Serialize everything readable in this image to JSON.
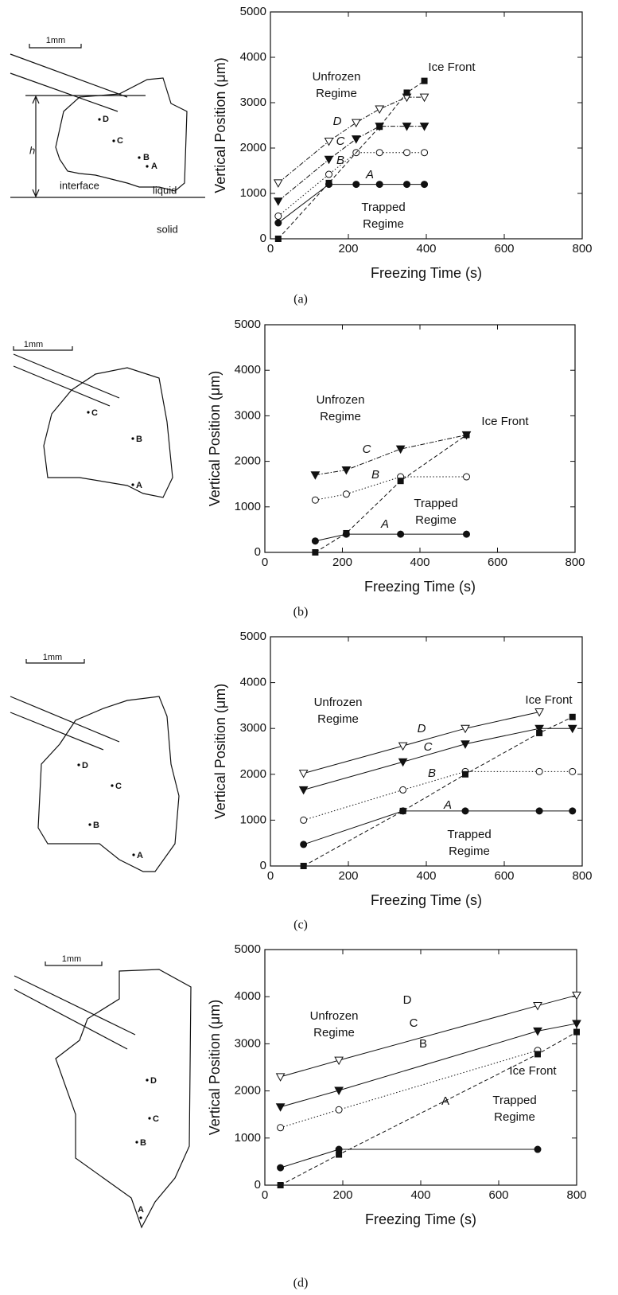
{
  "chart_data": [
    {
      "type": "line",
      "x_label": "Freezing Time (s)",
      "y_label": "Vertical Position (μm)",
      "xlim": [
        0,
        800
      ],
      "xticks": [
        0,
        200,
        400,
        600,
        800
      ],
      "ylim": [
        0,
        5000
      ],
      "yticks": [
        0,
        1000,
        2000,
        3000,
        4000,
        5000
      ],
      "series_label_italic": true,
      "annotations": [
        {
          "lines": [
            "Unfrozen",
            "Regime"
          ]
        },
        {
          "lines": [
            "Trapped",
            "Regime"
          ]
        }
      ],
      "series": [
        {
          "name": "A",
          "marker": "filled-circle",
          "dash": "solid",
          "x": [
            20,
            150,
            220,
            280,
            350,
            395
          ],
          "values": [
            350,
            1200,
            1200,
            1200,
            1200,
            1200
          ]
        },
        {
          "name": "B",
          "marker": "open-circle",
          "dash": "dotted",
          "x": [
            20,
            150,
            220,
            280,
            350,
            395
          ],
          "values": [
            500,
            1420,
            1900,
            1900,
            1900,
            1900
          ]
        },
        {
          "name": "C",
          "marker": "filled-triangle",
          "dash": "dashdot",
          "x": [
            20,
            150,
            220,
            280,
            350,
            395
          ],
          "values": [
            830,
            1750,
            2200,
            2480,
            2480,
            2480
          ]
        },
        {
          "name": "D",
          "marker": "open-triangle",
          "dash": "dashdot",
          "x": [
            20,
            150,
            220,
            280,
            350,
            395
          ],
          "values": [
            1230,
            2150,
            2560,
            2860,
            3120,
            3120
          ]
        },
        {
          "name": "Ice Front",
          "marker": "filled-square",
          "dash": "dashed",
          "x": [
            20,
            150,
            280,
            350,
            395
          ],
          "values": [
            0,
            1230,
            2470,
            3220,
            3480
          ]
        }
      ]
    },
    {
      "type": "line",
      "x_label": "Freezing Time (s)",
      "y_label": "Vertical Position (μm)",
      "xlim": [
        0,
        800
      ],
      "xticks": [
        0,
        200,
        400,
        600,
        800
      ],
      "ylim": [
        0,
        5000
      ],
      "yticks": [
        0,
        1000,
        2000,
        3000,
        4000,
        5000
      ],
      "series_label_italic": true,
      "annotations": [
        {
          "lines": [
            "Unfrozen",
            "Regime"
          ]
        },
        {
          "lines": [
            "Trapped",
            "Regime"
          ]
        }
      ],
      "series": [
        {
          "name": "A",
          "marker": "filled-circle",
          "dash": "solid",
          "x": [
            130,
            210,
            350,
            520
          ],
          "values": [
            250,
            400,
            400,
            400
          ]
        },
        {
          "name": "B",
          "marker": "open-circle",
          "dash": "dotted",
          "x": [
            130,
            210,
            350,
            520
          ],
          "values": [
            1150,
            1280,
            1660,
            1660
          ]
        },
        {
          "name": "C",
          "marker": "filled-triangle",
          "dash": "dashdot",
          "x": [
            130,
            210,
            350,
            520
          ],
          "values": [
            1700,
            1810,
            2270,
            2580
          ]
        },
        {
          "name": "Ice Front",
          "marker": "filled-square",
          "dash": "dashed",
          "x": [
            130,
            210,
            350,
            520
          ],
          "values": [
            0,
            420,
            1570,
            2580
          ]
        }
      ]
    },
    {
      "type": "line",
      "x_label": "Freezing Time (s)",
      "y_label": "Vertical Position (μm)",
      "xlim": [
        0,
        800
      ],
      "xticks": [
        0,
        200,
        400,
        600,
        800
      ],
      "ylim": [
        0,
        5000
      ],
      "yticks": [
        0,
        1000,
        2000,
        3000,
        4000,
        5000
      ],
      "series_label_italic": true,
      "annotations": [
        {
          "lines": [
            "Unfrozen",
            "Regime"
          ]
        },
        {
          "lines": [
            "Trapped",
            "Regime"
          ]
        }
      ],
      "series": [
        {
          "name": "A",
          "marker": "filled-circle",
          "dash": "solid",
          "x": [
            85,
            340,
            500,
            690,
            775
          ],
          "values": [
            470,
            1200,
            1200,
            1200,
            1200
          ]
        },
        {
          "name": "B",
          "marker": "open-circle",
          "dash": "dotted",
          "x": [
            85,
            340,
            500,
            690,
            775
          ],
          "values": [
            1000,
            1660,
            2060,
            2060,
            2060
          ]
        },
        {
          "name": "C",
          "marker": "filled-triangle",
          "dash": "solid",
          "x": [
            85,
            340,
            500,
            690,
            775
          ],
          "values": [
            1660,
            2270,
            2660,
            3000,
            3000
          ]
        },
        {
          "name": "D",
          "marker": "open-triangle",
          "dash": "solid",
          "x": [
            85,
            340,
            500,
            690
          ],
          "values": [
            2020,
            2620,
            3000,
            3360
          ]
        },
        {
          "name": "Ice Front",
          "marker": "filled-square",
          "dash": "dashed",
          "x": [
            85,
            340,
            500,
            690,
            775
          ],
          "values": [
            0,
            1200,
            2000,
            2900,
            3250
          ]
        }
      ]
    },
    {
      "type": "line",
      "x_label": "Freezing Time (s)",
      "y_label": "Vertical Position (μm)",
      "xlim": [
        0,
        800
      ],
      "xticks": [
        0,
        200,
        400,
        600,
        800
      ],
      "ylim": [
        0,
        5000
      ],
      "yticks": [
        0,
        1000,
        2000,
        3000,
        4000,
        5000
      ],
      "series_label_italic": false,
      "annotations": [
        {
          "lines": [
            "Unfrozen",
            "Regime"
          ]
        },
        {
          "lines": [
            "Trapped",
            "Regime"
          ]
        }
      ],
      "series": [
        {
          "name": "A",
          "marker": "filled-circle",
          "dash": "solid",
          "x": [
            40,
            190,
            700
          ],
          "values": [
            370,
            760,
            760
          ]
        },
        {
          "name": "B",
          "marker": "open-circle",
          "dash": "dotted",
          "x": [
            40,
            190,
            700
          ],
          "values": [
            1220,
            1600,
            2860
          ]
        },
        {
          "name": "C",
          "marker": "filled-triangle",
          "dash": "solid",
          "x": [
            40,
            190,
            700,
            800
          ],
          "values": [
            1660,
            2010,
            3270,
            3430
          ]
        },
        {
          "name": "D",
          "marker": "open-triangle",
          "dash": "solid",
          "x": [
            40,
            190,
            700,
            800
          ],
          "values": [
            2300,
            2650,
            3810,
            4030
          ]
        },
        {
          "name": "Ice Front",
          "marker": "filled-square",
          "dash": "dashed",
          "x": [
            40,
            190,
            700,
            800
          ],
          "values": [
            0,
            650,
            2780,
            3250
          ]
        }
      ]
    }
  ],
  "panels": [
    {
      "caption": "(a)",
      "diagram": {
        "scale": "1mm",
        "height": "h",
        "interface": "interface",
        "liquid": "liquid",
        "solid": "solid",
        "points": [
          "D",
          "C",
          "B",
          "A"
        ]
      }
    },
    {
      "caption": "(b)",
      "diagram": {
        "scale": "1mm",
        "points": [
          "C",
          "B",
          "A"
        ]
      }
    },
    {
      "caption": "(c)",
      "diagram": {
        "scale": "1mm",
        "points": [
          "D",
          "C",
          "B",
          "A"
        ]
      }
    },
    {
      "caption": "(d)",
      "diagram": {
        "scale": "1mm",
        "points": [
          "D",
          "C",
          "B",
          "A"
        ]
      }
    }
  ]
}
